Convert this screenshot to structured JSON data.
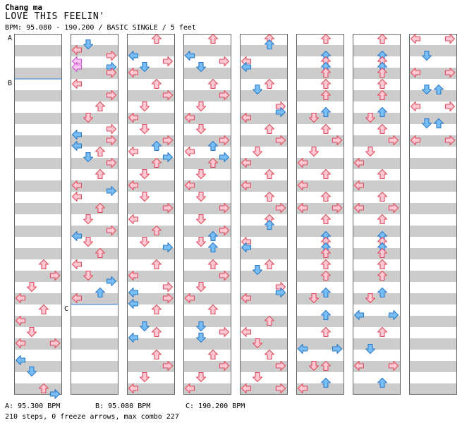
{
  "header": {
    "artist": "Chang ma",
    "title": "LOVE THIS FEELIN'",
    "bpm_info": "BPM: 95.080 - 190.200 / BASIC SINGLE / 5 feet"
  },
  "bpm_markers": [
    {
      "label": "A",
      "bpm_text": "A: 95.300 BPM"
    },
    {
      "label": "B",
      "bpm_text": "B: 95.080 BPM"
    },
    {
      "label": "C",
      "bpm_text": "C: 190.200 BPM"
    }
  ],
  "footer": {
    "stats": "210 steps, 0 freeze arrows, max combo 227"
  },
  "colors": {
    "red_fill": "#ffc8d2",
    "red_stroke": "#e04a5c",
    "blue_fill": "#78bef5",
    "blue_stroke": "#2a78c8",
    "pink_fill": "#ffc8f5",
    "pink_stroke": "#d04cd0",
    "stripe": "#cccccc",
    "bpm_line": "#3a7ad8"
  },
  "chart_data": {
    "type": "dance-step-chart",
    "columns": 8,
    "measures_per_column": 8,
    "lanes": [
      "left",
      "down",
      "up",
      "right"
    ],
    "arrow_icons": {
      "left": "arrow-left-icon",
      "down": "arrow-down-icon",
      "up": "arrow-up-icon",
      "right": "arrow-right-icon"
    }
  }
}
